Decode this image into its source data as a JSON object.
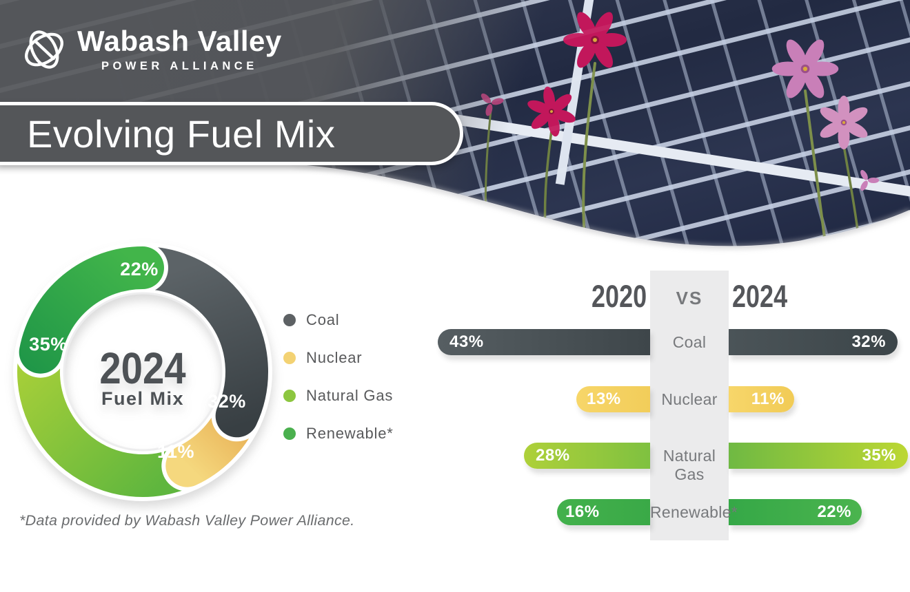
{
  "brand": {
    "line1": "Wabash Valley",
    "line2": "POWER ALLIANCE"
  },
  "title": "Evolving Fuel Mix",
  "footnote": "*Data provided by Wabash Valley Power Alliance.",
  "donut_center": {
    "year": "2024",
    "label": "Fuel Mix"
  },
  "comparison_header": {
    "left_year": "2020",
    "vs": "VS",
    "right_year": "2024"
  },
  "fuels": [
    {
      "label": "Coal",
      "legend_color": "#5d6164",
      "donut_gradient": [
        "#5c6367",
        "#383f43"
      ],
      "bar_left_gradient": [
        "#565e62",
        "#3e464a"
      ],
      "bar_right_gradient": [
        "#4b5458",
        "#3c4549"
      ]
    },
    {
      "label": "Nuclear",
      "legend_color": "#f3d273",
      "donut_gradient": [
        "#e8b156",
        "#f5d87e"
      ],
      "bar_left_gradient": [
        "#f7d669",
        "#f2cd5a"
      ],
      "bar_right_gradient": [
        "#f7d66a",
        "#f1cb56"
      ]
    },
    {
      "label": "Natural Gas",
      "legend_color": "#8cc63f",
      "donut_gradient": [
        "#5fb63e",
        "#b0d238"
      ],
      "bar_left_gradient": [
        "#aed03a",
        "#7fc140"
      ],
      "bar_right_gradient": [
        "#6fb943",
        "#bcd733"
      ]
    },
    {
      "label": "Renewable*",
      "legend_color": "#4ab04e",
      "donut_gradient": [
        "#1f9648",
        "#42b54a"
      ],
      "bar_left_gradient": [
        "#43b14c",
        "#3aa947"
      ],
      "bar_right_gradient": [
        "#35a847",
        "#4bb44e"
      ]
    }
  ],
  "chart_data": [
    {
      "type": "pie",
      "subtype": "donut",
      "title": "2024 Fuel Mix",
      "labels": [
        "Coal",
        "Nuclear",
        "Natural Gas",
        "Renewable*"
      ],
      "values": [
        32,
        11,
        35,
        22
      ],
      "unit": "%",
      "start_angle_deg": 0,
      "direction": "clockwise",
      "center_text": [
        "2024",
        "Fuel Mix"
      ],
      "legend_position": "right"
    },
    {
      "type": "bar",
      "orientation": "horizontal-mirrored",
      "title": "2020 vs 2024",
      "categories": [
        "Coal",
        "Nuclear",
        "Natural Gas",
        "Renewable*"
      ],
      "series": [
        {
          "name": "2020",
          "values": [
            43,
            13,
            28,
            16
          ]
        },
        {
          "name": "2024",
          "values": [
            32,
            11,
            35,
            22
          ]
        }
      ],
      "unit": "%",
      "value_labels_shown": true
    }
  ]
}
